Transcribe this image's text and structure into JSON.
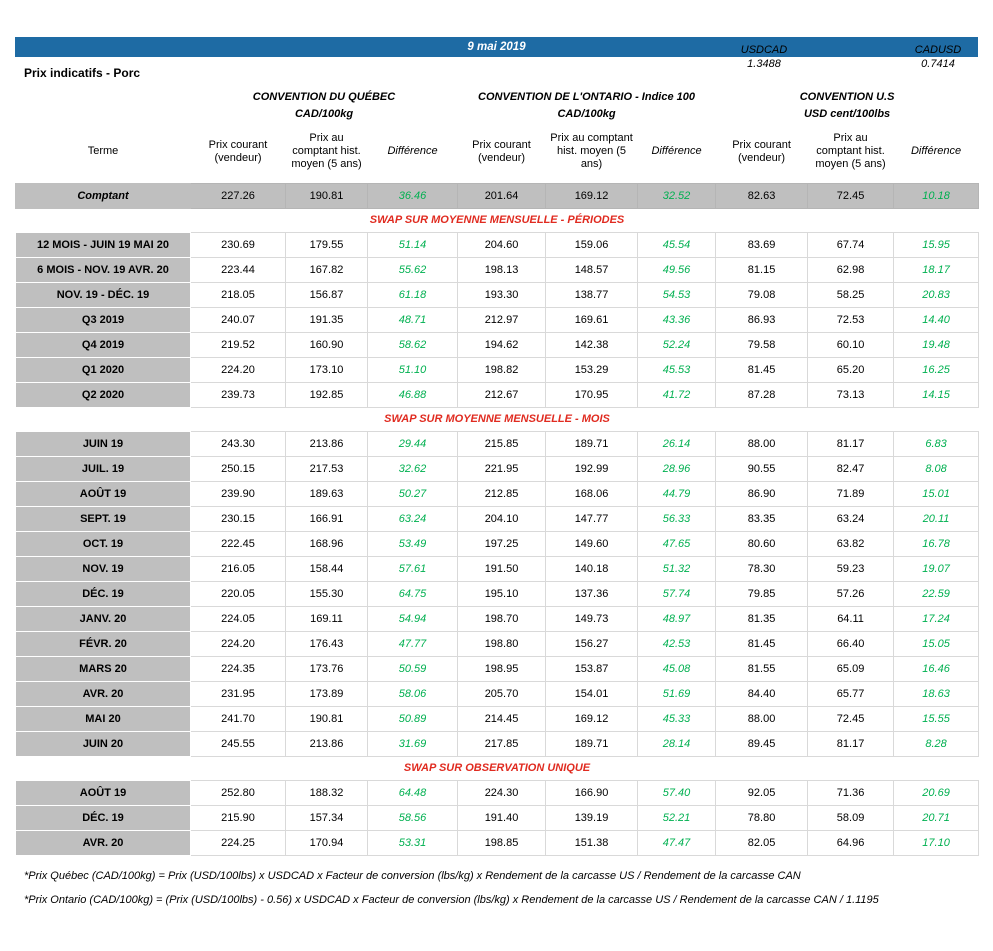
{
  "colors": {
    "header_blue": "#1e6ba4",
    "section_red": "#e02b20",
    "positive_green": "#00b050",
    "label_gray": "#bfbfbf"
  },
  "fx": {
    "usdcad_label": "USDCAD",
    "usdcad_value": "1.3488",
    "cadusd_label": "CADUSD",
    "cadusd_value": "0.7414"
  },
  "header": {
    "date": "9 mai 2019",
    "title": "Prix indicatifs - Porc"
  },
  "conventions": [
    {
      "name": "CONVENTION DU QUÉBEC",
      "unit": "CAD/100kg"
    },
    {
      "name": "CONVENTION DE L'ONTARIO - Indice 100",
      "unit": "CAD/100kg"
    },
    {
      "name": "CONVENTION U.S",
      "unit": "USD cent/100lbs"
    }
  ],
  "columns": {
    "terme": "Terme",
    "prix_courant": "Prix courant (vendeur)",
    "prix_comptant": "Prix au comptant hist. moyen (5 ans)",
    "difference": "Différence"
  },
  "comptant_row": {
    "label": "Comptant",
    "values": [
      "227.26",
      "190.81",
      "36.46",
      "201.64",
      "169.12",
      "32.52",
      "82.63",
      "72.45",
      "10.18"
    ]
  },
  "sections": [
    {
      "title": "SWAP SUR MOYENNE MENSUELLE - PÉRIODES",
      "rows": [
        {
          "label": "12 MOIS -  JUIN 19 MAI 20",
          "values": [
            "230.69",
            "179.55",
            "51.14",
            "204.60",
            "159.06",
            "45.54",
            "83.69",
            "67.74",
            "15.95"
          ]
        },
        {
          "label": "6 MOIS -  NOV. 19 AVR. 20",
          "values": [
            "223.44",
            "167.82",
            "55.62",
            "198.13",
            "148.57",
            "49.56",
            "81.15",
            "62.98",
            "18.17"
          ]
        },
        {
          "label": "NOV. 19 -  DÉC. 19",
          "values": [
            "218.05",
            "156.87",
            "61.18",
            "193.30",
            "138.77",
            "54.53",
            "79.08",
            "58.25",
            "20.83"
          ]
        },
        {
          "label": "Q3 2019",
          "values": [
            "240.07",
            "191.35",
            "48.71",
            "212.97",
            "169.61",
            "43.36",
            "86.93",
            "72.53",
            "14.40"
          ]
        },
        {
          "label": "Q4 2019",
          "values": [
            "219.52",
            "160.90",
            "58.62",
            "194.62",
            "142.38",
            "52.24",
            "79.58",
            "60.10",
            "19.48"
          ]
        },
        {
          "label": "Q1 2020",
          "values": [
            "224.20",
            "173.10",
            "51.10",
            "198.82",
            "153.29",
            "45.53",
            "81.45",
            "65.20",
            "16.25"
          ]
        },
        {
          "label": "Q2 2020",
          "values": [
            "239.73",
            "192.85",
            "46.88",
            "212.67",
            "170.95",
            "41.72",
            "87.28",
            "73.13",
            "14.15"
          ]
        }
      ]
    },
    {
      "title": "SWAP SUR MOYENNE MENSUELLE - MOIS",
      "rows": [
        {
          "label": "JUIN 19",
          "values": [
            "243.30",
            "213.86",
            "29.44",
            "215.85",
            "189.71",
            "26.14",
            "88.00",
            "81.17",
            "6.83"
          ]
        },
        {
          "label": "JUIL. 19",
          "values": [
            "250.15",
            "217.53",
            "32.62",
            "221.95",
            "192.99",
            "28.96",
            "90.55",
            "82.47",
            "8.08"
          ]
        },
        {
          "label": "AOÛT 19",
          "values": [
            "239.90",
            "189.63",
            "50.27",
            "212.85",
            "168.06",
            "44.79",
            "86.90",
            "71.89",
            "15.01"
          ]
        },
        {
          "label": "SEPT. 19",
          "values": [
            "230.15",
            "166.91",
            "63.24",
            "204.10",
            "147.77",
            "56.33",
            "83.35",
            "63.24",
            "20.11"
          ]
        },
        {
          "label": "OCT. 19",
          "values": [
            "222.45",
            "168.96",
            "53.49",
            "197.25",
            "149.60",
            "47.65",
            "80.60",
            "63.82",
            "16.78"
          ]
        },
        {
          "label": "NOV. 19",
          "values": [
            "216.05",
            "158.44",
            "57.61",
            "191.50",
            "140.18",
            "51.32",
            "78.30",
            "59.23",
            "19.07"
          ]
        },
        {
          "label": "DÉC. 19",
          "values": [
            "220.05",
            "155.30",
            "64.75",
            "195.10",
            "137.36",
            "57.74",
            "79.85",
            "57.26",
            "22.59"
          ]
        },
        {
          "label": "JANV. 20",
          "values": [
            "224.05",
            "169.11",
            "54.94",
            "198.70",
            "149.73",
            "48.97",
            "81.35",
            "64.11",
            "17.24"
          ]
        },
        {
          "label": "FÉVR. 20",
          "values": [
            "224.20",
            "176.43",
            "47.77",
            "198.80",
            "156.27",
            "42.53",
            "81.45",
            "66.40",
            "15.05"
          ]
        },
        {
          "label": "MARS 20",
          "values": [
            "224.35",
            "173.76",
            "50.59",
            "198.95",
            "153.87",
            "45.08",
            "81.55",
            "65.09",
            "16.46"
          ]
        },
        {
          "label": "AVR. 20",
          "values": [
            "231.95",
            "173.89",
            "58.06",
            "205.70",
            "154.01",
            "51.69",
            "84.40",
            "65.77",
            "18.63"
          ]
        },
        {
          "label": "MAI 20",
          "values": [
            "241.70",
            "190.81",
            "50.89",
            "214.45",
            "169.12",
            "45.33",
            "88.00",
            "72.45",
            "15.55"
          ]
        },
        {
          "label": "JUIN 20",
          "values": [
            "245.55",
            "213.86",
            "31.69",
            "217.85",
            "189.71",
            "28.14",
            "89.45",
            "81.17",
            "8.28"
          ]
        }
      ]
    },
    {
      "title": "SWAP SUR OBSERVATION UNIQUE",
      "rows": [
        {
          "label": "AOÛT 19",
          "values": [
            "252.80",
            "188.32",
            "64.48",
            "224.30",
            "166.90",
            "57.40",
            "92.05",
            "71.36",
            "20.69"
          ]
        },
        {
          "label": "DÉC. 19",
          "values": [
            "215.90",
            "157.34",
            "58.56",
            "191.40",
            "139.19",
            "52.21",
            "78.80",
            "58.09",
            "20.71"
          ]
        },
        {
          "label": "AVR. 20",
          "values": [
            "224.25",
            "170.94",
            "53.31",
            "198.85",
            "151.38",
            "47.47",
            "82.05",
            "64.96",
            "17.10"
          ]
        }
      ]
    }
  ],
  "footnotes": [
    "*Prix Québec (CAD/100kg) = Prix (USD/100lbs) x USDCAD x Facteur de conversion (lbs/kg) x Rendement de la carcasse US / Rendement de la carcasse CAN",
    "*Prix Ontario (CAD/100kg) = (Prix (USD/100lbs) - 0.56) x USDCAD x Facteur de conversion (lbs/kg) x Rendement de la carcasse US / Rendement de la carcasse CAN / 1.1195"
  ]
}
